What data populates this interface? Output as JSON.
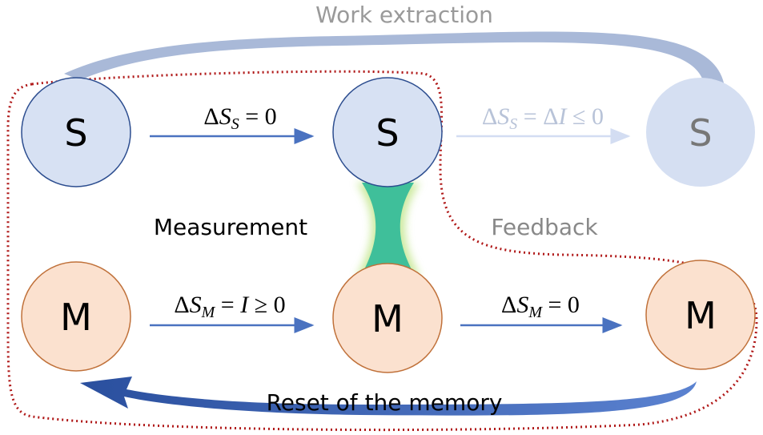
{
  "labels": {
    "work": "Work extraction",
    "measurement": "Measurement",
    "feedback": "Feedback",
    "reset": "Reset of the memory"
  },
  "nodes": [
    {
      "label": "S"
    },
    {
      "label": "S"
    },
    {
      "label": "S"
    },
    {
      "label": "M"
    },
    {
      "label": "M"
    },
    {
      "label": "M"
    }
  ],
  "edges": [
    {
      "delta": "Δ",
      "var": "S",
      "sub": "S",
      "rest": " = 0"
    },
    {
      "delta": "Δ",
      "var": "S",
      "sub": "S",
      "rest": " = Δ",
      "var2": "I",
      "rest2": " ≤ 0"
    },
    {
      "delta": "Δ",
      "var": "S",
      "sub": "M",
      "rest": " = ",
      "var2": "I",
      "rest2": " ≥ 0"
    },
    {
      "delta": "Δ",
      "var": "S",
      "sub": "M",
      "rest": " = 0"
    }
  ]
}
